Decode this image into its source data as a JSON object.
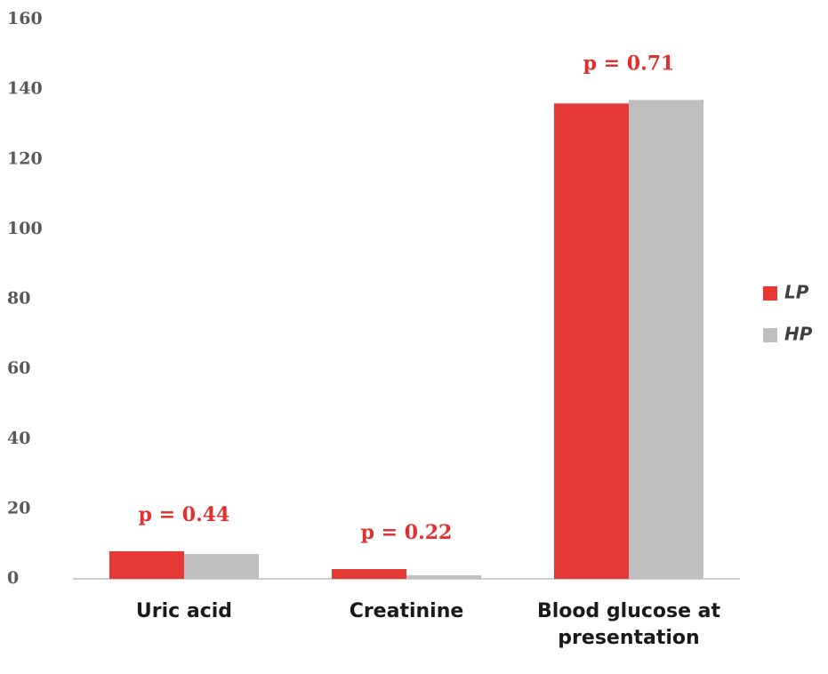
{
  "chart_data": {
    "type": "bar",
    "categories": [
      "Uric acid",
      "Creatinine",
      "Blood glucose at presentation"
    ],
    "series": [
      {
        "name": "LP",
        "color": "#e53935",
        "values": [
          7.9,
          2.8,
          136
        ]
      },
      {
        "name": "HP",
        "color": "#bfbfbf",
        "values": [
          7.1,
          1.0,
          137
        ]
      }
    ],
    "annotations": [
      "p = 0.44",
      "p = 0.22",
      "p = 0.71"
    ],
    "ylim": [
      0,
      160
    ],
    "yticks": [
      0,
      20,
      40,
      60,
      80,
      100,
      120,
      140,
      160
    ],
    "grid": false,
    "legend": "right"
  }
}
